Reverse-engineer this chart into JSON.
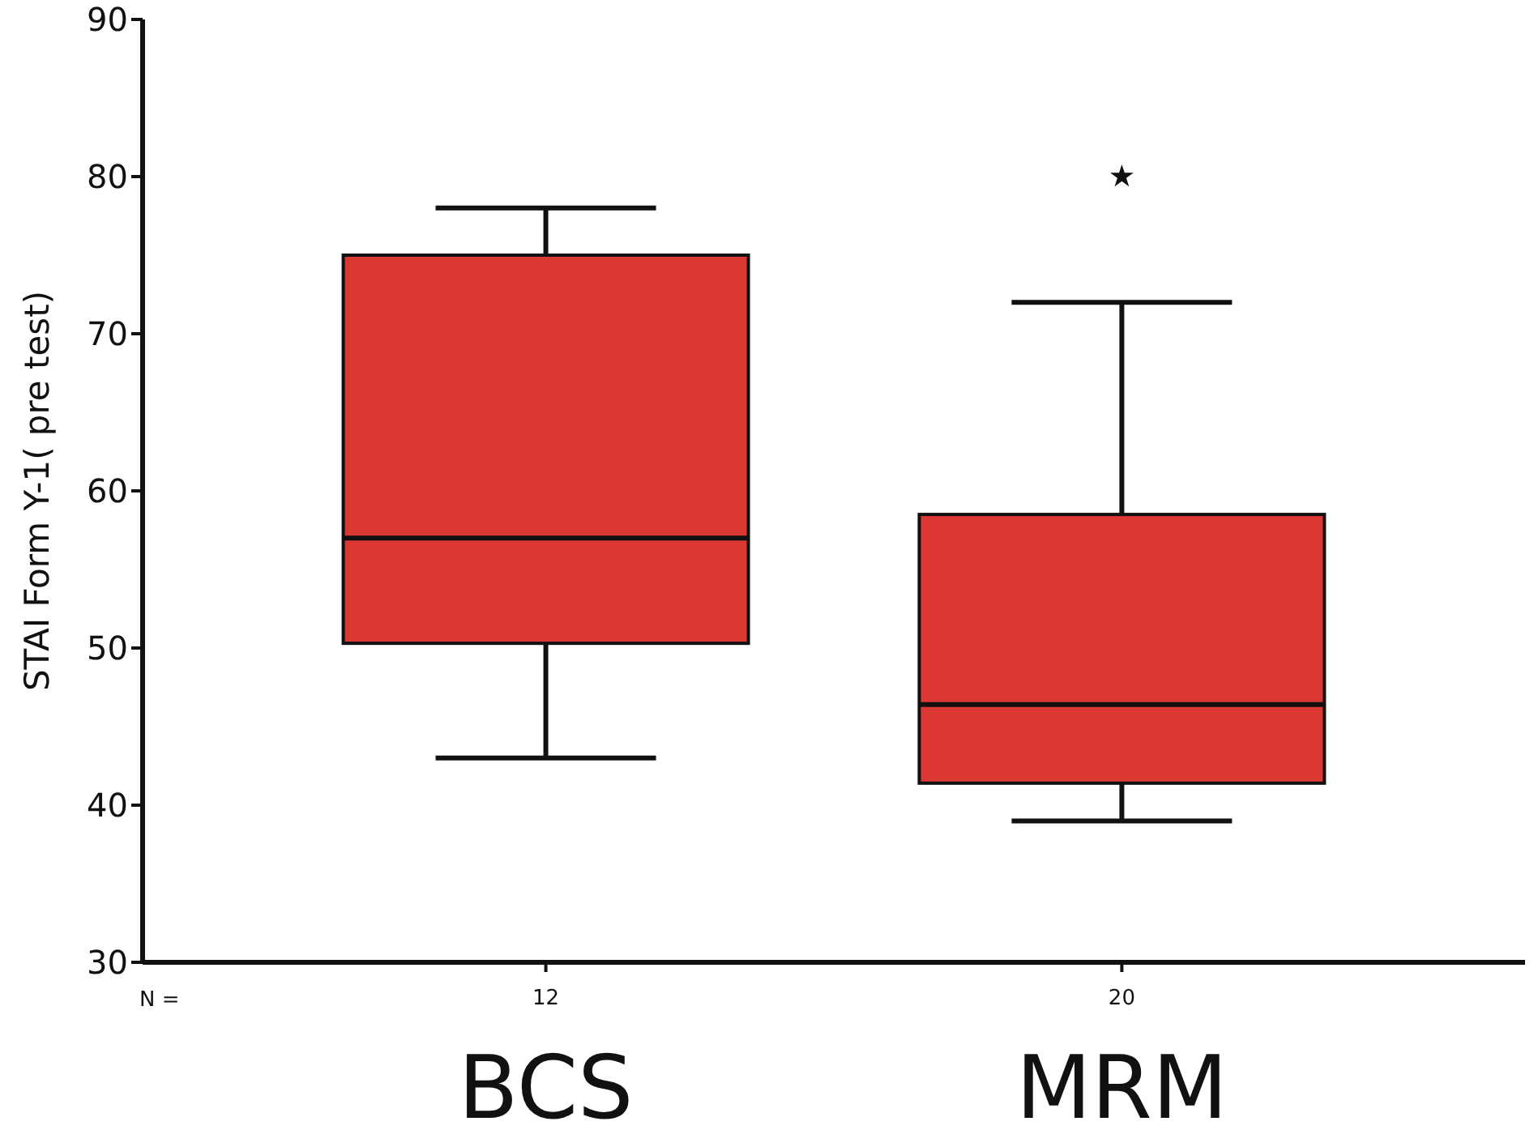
{
  "chart_data": {
    "type": "box",
    "ylabel": "STAI  Form Y-1( pre test)",
    "categories": [
      "BCS",
      "MRM"
    ],
    "boxes": [
      {
        "low": 43,
        "q1": 50.3,
        "median": 57,
        "q3": 75,
        "high": 78
      },
      {
        "low": 39,
        "q1": 41.4,
        "median": 46.4,
        "q3": 58.5,
        "high": 72,
        "outliers": [
          80
        ]
      }
    ],
    "color": "#db3834",
    "ylim": [
      30,
      90
    ],
    "yticks": [
      30,
      40,
      50,
      60,
      70,
      80,
      90
    ],
    "grid": false,
    "annotations": [
      "N =",
      "12",
      "20"
    ]
  }
}
